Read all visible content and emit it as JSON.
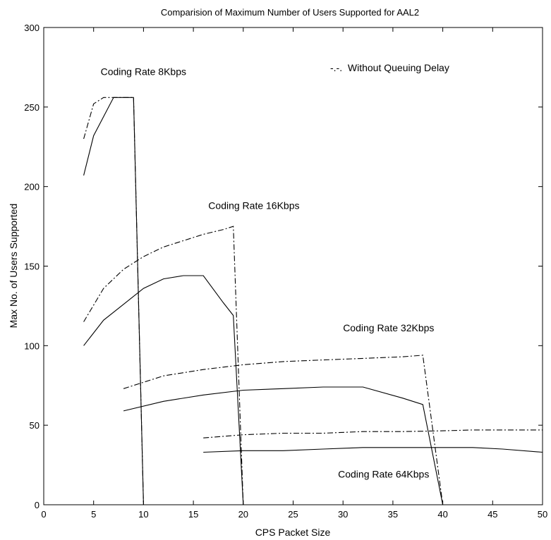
{
  "chart_data": {
    "type": "line",
    "title": "Comparision of Maximum Number of Users Supported for AAL2",
    "xlabel": "CPS Packet Size",
    "ylabel": "Max No. of Users Supported",
    "xlim": [
      0,
      50
    ],
    "ylim": [
      0,
      300
    ],
    "xticks": [
      "0",
      "5",
      "10",
      "15",
      "20",
      "25",
      "30",
      "35",
      "40",
      "45",
      "50"
    ],
    "yticks": [
      "0",
      "50",
      "100",
      "150",
      "200",
      "250",
      "300"
    ],
    "grid": false,
    "legend": {
      "text": "-.-.  Without Queuing Delay",
      "placement": "top-right"
    },
    "annotations": [
      {
        "text": "Coding Rate 8Kbps",
        "x": 5.7,
        "y": 270
      },
      {
        "text": "Coding Rate 16Kbps",
        "x": 16.5,
        "y": 186
      },
      {
        "text": "Coding Rate 32Kbps",
        "x": 30,
        "y": 109
      },
      {
        "text": "Coding Rate 64Kbps",
        "x": 29.5,
        "y": 17
      }
    ],
    "series": [
      {
        "style": "solid",
        "x": [
          4,
          5,
          7,
          8,
          9,
          10
        ],
        "y": [
          207,
          232,
          256,
          256,
          256,
          0
        ]
      },
      {
        "style": "dashdot",
        "x": [
          4,
          5,
          6,
          7,
          8,
          9,
          10
        ],
        "y": [
          230,
          252,
          256,
          256,
          256,
          256,
          0
        ]
      },
      {
        "style": "solid",
        "x": [
          4,
          6,
          8,
          10,
          12,
          14,
          16,
          18,
          19,
          20
        ],
        "y": [
          100,
          116,
          126,
          136,
          142,
          144,
          144,
          127,
          119,
          0
        ]
      },
      {
        "style": "dashdot",
        "x": [
          4,
          6,
          8,
          10,
          12,
          14,
          16,
          18,
          19,
          20
        ],
        "y": [
          115,
          136,
          148,
          156,
          162,
          166,
          170,
          173,
          175,
          0
        ]
      },
      {
        "style": "solid",
        "x": [
          8,
          12,
          16,
          20,
          24,
          28,
          32,
          36,
          38,
          40
        ],
        "y": [
          59,
          65,
          69,
          72,
          73,
          74,
          74,
          67,
          63,
          0
        ]
      },
      {
        "style": "dashdot",
        "x": [
          8,
          12,
          16,
          20,
          24,
          28,
          32,
          36,
          38,
          40
        ],
        "y": [
          73,
          81,
          85,
          88,
          90,
          91,
          92,
          93,
          94,
          0
        ]
      },
      {
        "style": "solid",
        "x": [
          16,
          20,
          24,
          28,
          32,
          36,
          40,
          43,
          46,
          50
        ],
        "y": [
          33,
          34,
          34,
          35,
          36,
          36,
          36,
          36,
          35,
          33
        ]
      },
      {
        "style": "dashdot",
        "x": [
          16,
          20,
          24,
          28,
          32,
          36,
          40,
          43,
          46,
          50
        ],
        "y": [
          42,
          44,
          45,
          45,
          46,
          46,
          46.5,
          47,
          47,
          47
        ]
      }
    ]
  }
}
